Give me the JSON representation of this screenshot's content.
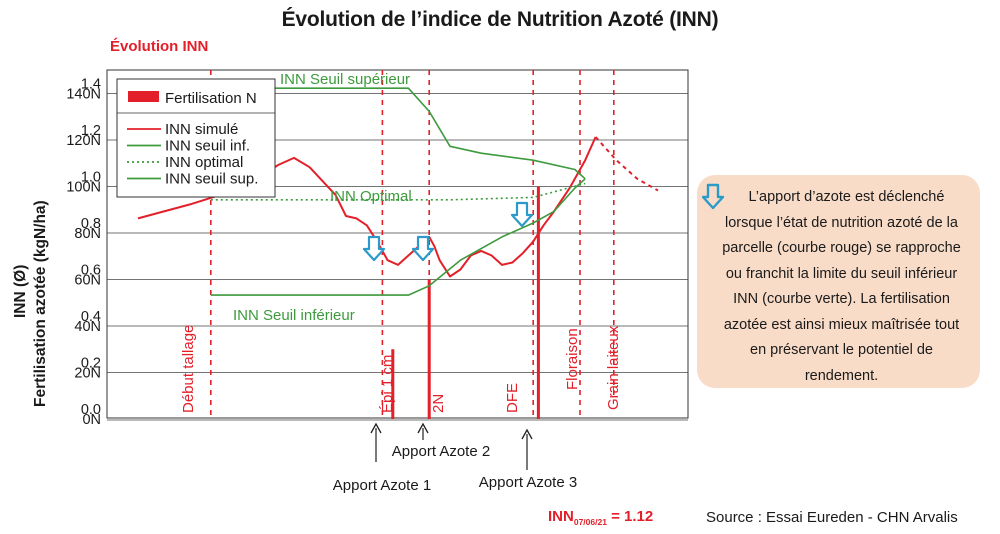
{
  "title": "Évolution de l’indice de Nutrition Azoté (INN)",
  "subtitle": "Évolution INN",
  "ylabel_inn": "INN (Ø)",
  "ylabel_n": "Fertilisation azotée (kgN/ha)",
  "chart_data": {
    "type": "line",
    "y_axis_inn": {
      "ticks": [
        "1.4",
        "1.2",
        "1.0",
        "0.8",
        "0.6",
        "0.4",
        "0.2",
        "0.0"
      ],
      "range": [
        0.0,
        1.4
      ]
    },
    "y_axis_n": {
      "ticks": [
        "140N",
        "120N",
        "100N",
        "80N",
        "60N",
        "40N",
        "20N",
        "0N"
      ],
      "range": [
        0,
        140
      ]
    },
    "legend": {
      "position": "top-left",
      "items": [
        {
          "label": "Fertilisation N",
          "style": "bar",
          "color": "#e3202a"
        },
        {
          "label": "INN simulé",
          "style": "solid",
          "color": "#e3202a"
        },
        {
          "label": "INN seuil inf.",
          "style": "solid",
          "color": "#3d9a3d"
        },
        {
          "label": "INN optimal",
          "style": "dotted",
          "color": "#3d9a3d"
        },
        {
          "label": "INN seuil sup.",
          "style": "solid",
          "color": "#3d9a3d"
        }
      ]
    },
    "series": [
      {
        "name": "INN simulé",
        "color": "#e3202a",
        "style": "solid",
        "points_inn": [
          [
            0,
            0.82
          ],
          [
            0.1,
            0.88
          ],
          [
            0.2,
            0.95
          ],
          [
            0.27,
            1.05
          ],
          [
            0.3,
            1.08
          ],
          [
            0.33,
            1.04
          ],
          [
            0.38,
            0.92
          ],
          [
            0.4,
            0.83
          ],
          [
            0.42,
            0.82
          ],
          [
            0.44,
            0.79
          ],
          [
            0.46,
            0.72
          ],
          [
            0.48,
            0.64
          ],
          [
            0.5,
            0.62
          ],
          [
            0.52,
            0.66
          ],
          [
            0.54,
            0.7
          ],
          [
            0.56,
            0.74
          ],
          [
            0.57,
            0.7
          ],
          [
            0.58,
            0.64
          ],
          [
            0.6,
            0.57
          ],
          [
            0.62,
            0.6
          ],
          [
            0.64,
            0.66
          ],
          [
            0.66,
            0.68
          ],
          [
            0.68,
            0.66
          ],
          [
            0.7,
            0.62
          ],
          [
            0.72,
            0.63
          ],
          [
            0.74,
            0.67
          ],
          [
            0.76,
            0.72
          ],
          [
            0.78,
            0.79
          ],
          [
            0.8,
            0.85
          ],
          [
            0.83,
            0.95
          ],
          [
            0.86,
            1.07
          ],
          [
            0.88,
            1.17
          ]
        ]
      },
      {
        "name": "INN simulé (prévision)",
        "color": "#e3202a",
        "style": "dashed",
        "points_inn": [
          [
            0.88,
            1.17
          ],
          [
            0.92,
            1.07
          ],
          [
            0.96,
            0.99
          ],
          [
            1.0,
            0.94
          ]
        ]
      },
      {
        "name": "INN seuil inf.",
        "color": "#3d9a3d",
        "style": "solid",
        "points_inn": [
          [
            0.14,
            0.49
          ],
          [
            0.52,
            0.49
          ],
          [
            0.56,
            0.53
          ],
          [
            0.62,
            0.64
          ],
          [
            0.7,
            0.74
          ],
          [
            0.76,
            0.8
          ],
          [
            0.8,
            0.85
          ],
          [
            0.84,
            0.95
          ],
          [
            0.86,
            0.99
          ]
        ]
      },
      {
        "name": "INN optimal",
        "color": "#3d9a3d",
        "style": "dotted",
        "points_inn": [
          [
            0.14,
            0.9
          ],
          [
            0.6,
            0.9
          ],
          [
            0.76,
            0.91
          ],
          [
            0.86,
            0.97
          ]
        ]
      },
      {
        "name": "INN seuil sup.",
        "color": "#3d9a3d",
        "style": "solid",
        "points_inn": [
          [
            0.14,
            1.38
          ],
          [
            0.52,
            1.38
          ],
          [
            0.56,
            1.28
          ],
          [
            0.6,
            1.13
          ],
          [
            0.66,
            1.1
          ],
          [
            0.76,
            1.07
          ],
          [
            0.84,
            1.03
          ],
          [
            0.86,
            0.99
          ]
        ]
      }
    ],
    "fertilisation_N": [
      {
        "x": 0.49,
        "kgN": 30,
        "label": "Apport Azote 1"
      },
      {
        "x": 0.56,
        "kgN": 60,
        "label": "Apport Azote 2"
      },
      {
        "x": 0.77,
        "kgN": 100,
        "label": "Apport Azote 3"
      }
    ],
    "stages": [
      "Début tallage",
      "Épi 1 cm",
      "2N",
      "DFE",
      "Floraison",
      "Grain laiteux"
    ],
    "annotations": [
      "INN Seuil supérieur",
      "INN Optimal",
      "INN Seuil inférieur"
    ],
    "inn_result": "INN",
    "inn_result_sub": "07/06/21",
    "inn_result_value": " = 1.12"
  },
  "note": {
    "text": "L’apport d’azote est déclenché lorsque l’état de nutrition azoté de la parcelle (courbe rouge) se rapproche ou franchit la limite du seuil inférieur INN (courbe verte). La fertilisation azotée est ainsi mieux maîtrisée tout en préservant le potentiel de rendement.",
    "icon": "down-arrow-icon"
  },
  "source": "Source : Essai Eureden - CHN Arvalis",
  "colors": {
    "red": "#e3202a",
    "green": "#3d9a3d",
    "blue": "#2c9ac9",
    "note_bg": "#f9dcc8"
  }
}
